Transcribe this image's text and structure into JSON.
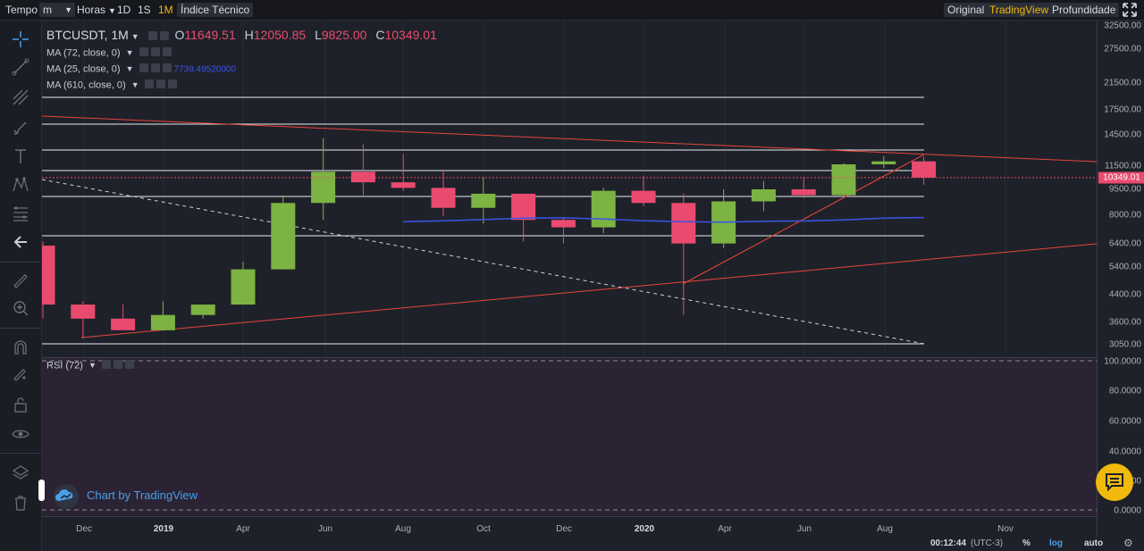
{
  "topbar": {
    "tempo": "Tempo",
    "interval_value": "m",
    "horas": "Horas",
    "intervals": [
      "1D",
      "1S",
      "1M"
    ],
    "active_interval": "1M",
    "indicators": "Índice Técnico",
    "views": [
      "Original",
      "TradingView",
      "Profundidade"
    ],
    "active_view": "TradingView"
  },
  "legend": {
    "symbol": "BTCUSDT, 1M",
    "open_label": "O",
    "open": "11649.51",
    "high_label": "H",
    "high": "12050.85",
    "low_label": "L",
    "low": "9825.00",
    "close_label": "C",
    "close": "10349.01"
  },
  "indicators": [
    {
      "label": "MA (72, close, 0)",
      "value": ""
    },
    {
      "label": "MA (25, close, 0)",
      "value": "7739.49520000"
    },
    {
      "label": "MA (610, close, 0)",
      "value": ""
    }
  ],
  "rsi": {
    "label": "RSI (72)"
  },
  "price_axis": {
    "ticks": [
      "32500.00",
      "27500.00",
      "21500.00",
      "17500.00",
      "14500.00",
      "11500.00",
      "9500.00",
      "8000.00",
      "6400.00",
      "5400.00",
      "4400.00",
      "3600.00",
      "3050.00"
    ],
    "current": "10349.01"
  },
  "rsi_axis": {
    "ticks": [
      "100.0000",
      "80.0000",
      "60.0000",
      "40.0000",
      "20.0000",
      "0.0000"
    ]
  },
  "time_axis": {
    "labels": [
      "Dec",
      "2019",
      "Apr",
      "Jun",
      "Aug",
      "Oct",
      "Dec",
      "2020",
      "Apr",
      "Jun",
      "Aug",
      "Nov"
    ],
    "bold": [
      "2019",
      "2020"
    ]
  },
  "status": {
    "time": "00:12:44",
    "tz": "(UTC-3)",
    "percent": "%",
    "log": "log",
    "auto": "auto"
  },
  "watermark": {
    "text": "Chart by TradingView"
  },
  "colors": {
    "up": "#7cb342",
    "down": "#e94b6f",
    "ma25": "#3b54e8",
    "trend": "#e8453c",
    "accent": "#f0b90b"
  },
  "chart_data": {
    "type": "candlestick",
    "scale": "log",
    "x": [
      "2018-11",
      "2018-12",
      "2019-01",
      "2019-02",
      "2019-03",
      "2019-04",
      "2019-05",
      "2019-06",
      "2019-07",
      "2019-08",
      "2019-09",
      "2019-10",
      "2019-11",
      "2019-12",
      "2020-01",
      "2020-02",
      "2020-03",
      "2020-04",
      "2020-05",
      "2020-06",
      "2020-07",
      "2020-08",
      "2020-09"
    ],
    "ohlc": [
      [
        6300,
        6500,
        3700,
        4100
      ],
      [
        4100,
        4200,
        3200,
        3700
      ],
      [
        3700,
        4100,
        3400,
        3400
      ],
      [
        3400,
        4200,
        3400,
        3800
      ],
      [
        3800,
        4100,
        3700,
        4100
      ],
      [
        4100,
        5600,
        4100,
        5300
      ],
      [
        5300,
        9100,
        5300,
        8600
      ],
      [
        8600,
        13800,
        7600,
        10800
      ],
      [
        10800,
        13200,
        9100,
        10000
      ],
      [
        10000,
        12300,
        9400,
        9600
      ],
      [
        9600,
        10900,
        7800,
        8300
      ],
      [
        8300,
        10400,
        7400,
        9200
      ],
      [
        9200,
        9200,
        6500,
        7600
      ],
      [
        7600,
        7700,
        6400,
        7200
      ],
      [
        7200,
        9600,
        6900,
        9400
      ],
      [
        9400,
        10500,
        8400,
        8600
      ],
      [
        8600,
        9200,
        3800,
        6400
      ],
      [
        6400,
        9500,
        6200,
        8700
      ],
      [
        8700,
        10100,
        8100,
        9500
      ],
      [
        9500,
        10400,
        8900,
        9100
      ],
      [
        9100,
        11500,
        9000,
        11400
      ],
      [
        11400,
        12100,
        11100,
        11650
      ],
      [
        11649.51,
        12050.85,
        9825.0,
        10349.01
      ]
    ],
    "ma25": [
      null,
      null,
      null,
      null,
      null,
      null,
      null,
      null,
      null,
      7500,
      7550,
      7620,
      7700,
      7720,
      7650,
      7560,
      7500,
      7480,
      7530,
      7540,
      7600,
      7700,
      7739.5
    ],
    "ylim": [
      2900,
      33500
    ]
  }
}
